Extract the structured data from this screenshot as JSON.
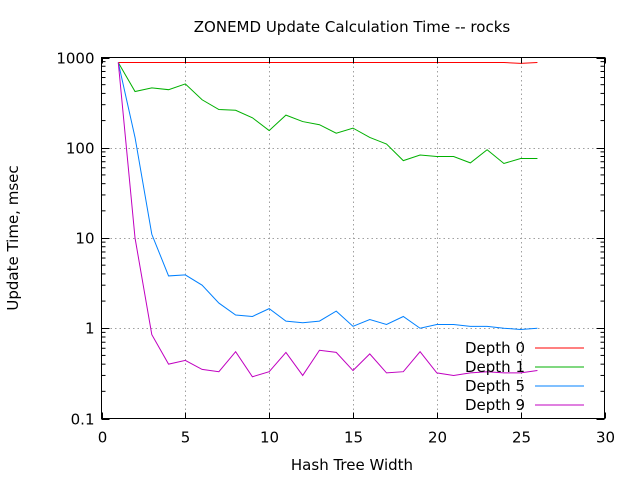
{
  "chart_data": {
    "type": "line",
    "title": "ZONEMD Update Calculation Time -- rocks",
    "xlabel": "Hash Tree Width",
    "ylabel": "Update Time, msec",
    "xlim": [
      0,
      30
    ],
    "ylim": [
      0.1,
      1000
    ],
    "yscale": "log",
    "grid": true,
    "legend_position": "bottom-right",
    "x_ticks": [
      0,
      5,
      10,
      15,
      20,
      25,
      30
    ],
    "x_tick_labels": [
      "0",
      "5",
      "10",
      "15",
      "20",
      "25",
      "30"
    ],
    "y_ticks": [
      0.1,
      1,
      10,
      100,
      1000
    ],
    "y_tick_labels": [
      "0.1",
      "1",
      "10",
      "100",
      "1000"
    ],
    "x": [
      1,
      2,
      3,
      4,
      5,
      6,
      7,
      8,
      9,
      10,
      11,
      12,
      13,
      14,
      15,
      16,
      17,
      18,
      19,
      20,
      21,
      22,
      23,
      24,
      25,
      26
    ],
    "series": [
      {
        "name": "Depth 0",
        "color": "#ff0000",
        "values": [
          880,
          880,
          880,
          880,
          880,
          880,
          880,
          880,
          880,
          880,
          880,
          880,
          880,
          880,
          880,
          880,
          880,
          880,
          880,
          880,
          880,
          880,
          880,
          880,
          860,
          880
        ]
      },
      {
        "name": "Depth 1",
        "color": "#00b000",
        "values": [
          880,
          420,
          460,
          440,
          510,
          340,
          265,
          260,
          215,
          155,
          230,
          195,
          180,
          145,
          165,
          130,
          110,
          72,
          83,
          80,
          80,
          68,
          95,
          67,
          76,
          76
        ]
      },
      {
        "name": "Depth 5",
        "color": "#0080ff",
        "values": [
          880,
          130,
          11,
          3.8,
          3.9,
          3.0,
          1.9,
          1.4,
          1.35,
          1.65,
          1.2,
          1.15,
          1.2,
          1.55,
          1.05,
          1.25,
          1.1,
          1.35,
          1.0,
          1.1,
          1.1,
          1.05,
          1.05,
          1.0,
          0.97,
          1.0
        ]
      },
      {
        "name": "Depth 9",
        "color": "#c000c0",
        "values": [
          880,
          10,
          0.85,
          0.4,
          0.44,
          0.35,
          0.33,
          0.55,
          0.29,
          0.33,
          0.54,
          0.3,
          0.57,
          0.54,
          0.34,
          0.52,
          0.32,
          0.33,
          0.55,
          0.32,
          0.3,
          0.32,
          0.33,
          0.32,
          0.32,
          0.34
        ]
      }
    ]
  }
}
